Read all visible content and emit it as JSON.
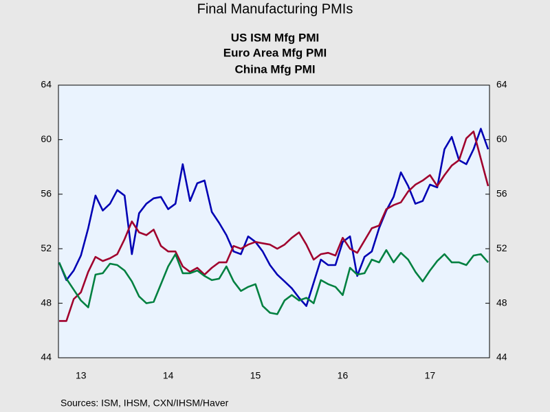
{
  "chart_data": {
    "type": "line",
    "title": "Final Manufacturing PMIs",
    "categories": [
      null,
      null,
      null,
      "13",
      null,
      null,
      null,
      null,
      null,
      null,
      null,
      null,
      null,
      null,
      null,
      "14",
      null,
      null,
      null,
      null,
      null,
      null,
      null,
      null,
      null,
      null,
      null,
      "15",
      null,
      null,
      null,
      null,
      null,
      null,
      null,
      null,
      null,
      null,
      null,
      "16",
      null,
      null,
      null,
      null,
      null,
      null,
      null,
      null,
      null,
      null,
      null,
      "17",
      null,
      null,
      null,
      null,
      null,
      null,
      null,
      null
    ],
    "series": [
      {
        "name": "US ISM Mfg PMI",
        "color": "#0000b4",
        "values": [
          51.0,
          49.7,
          50.4,
          51.5,
          53.5,
          55.9,
          54.8,
          55.3,
          56.3,
          55.9,
          51.6,
          54.6,
          55.3,
          55.7,
          55.8,
          54.9,
          55.3,
          58.2,
          55.5,
          56.8,
          57.0,
          54.7,
          53.9,
          53.0,
          51.8,
          51.6,
          52.9,
          52.5,
          51.8,
          50.8,
          50.1,
          49.6,
          49.1,
          48.4,
          47.8,
          49.5,
          51.2,
          50.8,
          50.8,
          52.5,
          52.9,
          50.0,
          51.4,
          51.8,
          53.5,
          54.8,
          55.8,
          57.6,
          56.6,
          55.3,
          55.5,
          56.7,
          56.5,
          59.3,
          60.2,
          58.5,
          58.2,
          59.3,
          60.8,
          59.3
        ]
      },
      {
        "name": "Euro Area Mfg PMI",
        "color": "#a0002d",
        "values": [
          46.7,
          46.7,
          48.3,
          48.8,
          50.3,
          51.4,
          51.1,
          51.3,
          51.6,
          52.7,
          54.0,
          53.2,
          53.0,
          53.4,
          52.2,
          51.8,
          51.8,
          50.7,
          50.3,
          50.6,
          50.1,
          50.6,
          51.0,
          51.0,
          52.2,
          52.0,
          52.3,
          52.5,
          52.4,
          52.3,
          52.0,
          52.3,
          52.8,
          53.2,
          52.3,
          51.2,
          51.6,
          51.7,
          51.5,
          52.8,
          52.0,
          51.7,
          52.6,
          53.5,
          53.7,
          54.9,
          55.2,
          55.4,
          56.2,
          56.7,
          57.0,
          57.4,
          56.6,
          57.4,
          58.1,
          58.5,
          60.1,
          60.6,
          58.6,
          56.6
        ]
      },
      {
        "name": "China Mfg PMI",
        "color": "#008040",
        "values": [
          51.0,
          49.8,
          49.0,
          48.2,
          47.7,
          50.1,
          50.2,
          50.9,
          50.8,
          50.4,
          49.6,
          48.5,
          48.0,
          48.1,
          49.4,
          50.7,
          51.6,
          50.2,
          50.2,
          50.4,
          50.0,
          49.7,
          49.8,
          50.7,
          49.6,
          48.9,
          49.2,
          49.4,
          47.8,
          47.3,
          47.2,
          48.2,
          48.6,
          48.2,
          48.4,
          48.0,
          49.7,
          49.4,
          49.2,
          48.6,
          50.6,
          50.1,
          50.2,
          51.2,
          51.0,
          51.9,
          51.0,
          51.7,
          51.2,
          50.3,
          49.6,
          50.4,
          51.1,
          51.6,
          51.0,
          51.0,
          50.8,
          51.5,
          51.6,
          51.0
        ]
      }
    ],
    "ylim": [
      44,
      64
    ],
    "yticks": [
      44,
      48,
      52,
      56,
      60,
      64
    ],
    "y2lim": [
      44,
      64
    ],
    "y2ticks": [
      44,
      48,
      52,
      56,
      60,
      64
    ],
    "grid": false,
    "source": "Sources:  ISM, IHSM, CXN/IHSM/Haver"
  }
}
